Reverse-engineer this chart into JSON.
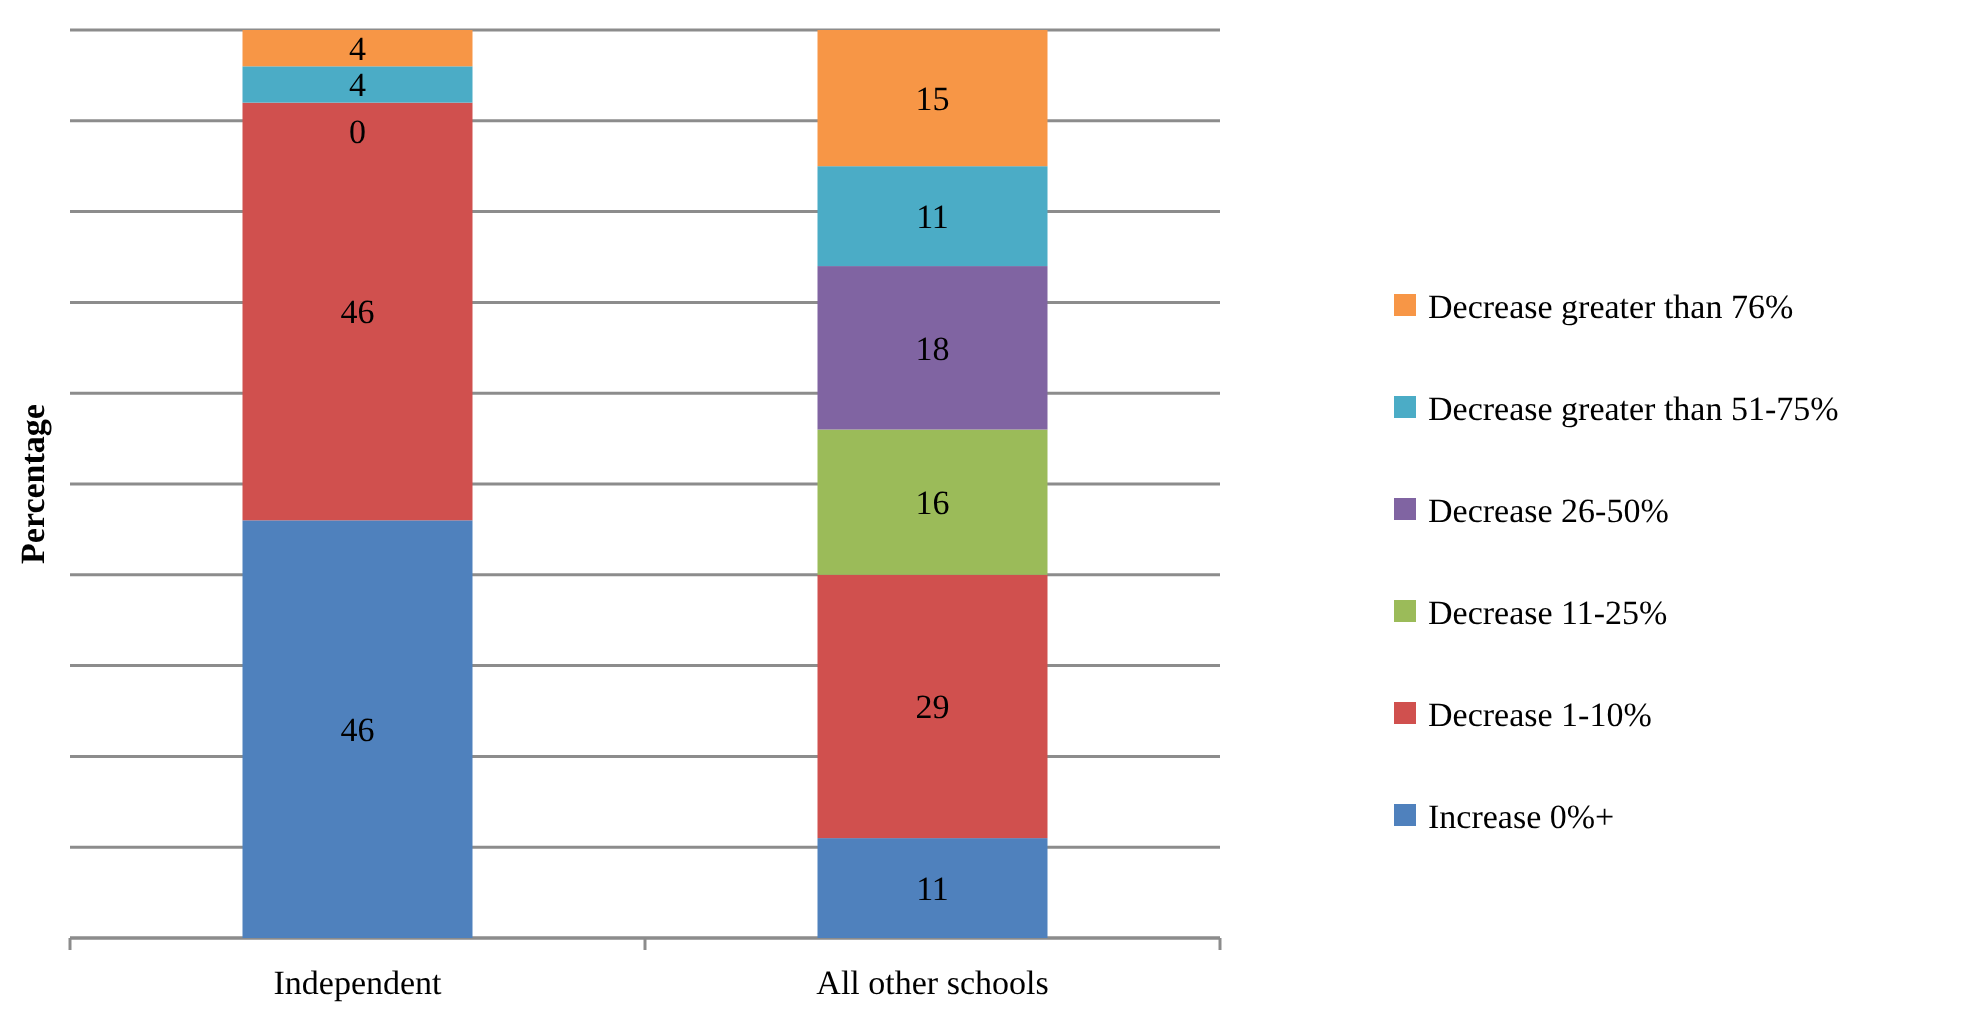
{
  "chart_data": {
    "type": "bar",
    "stacked": true,
    "ylabel": "Percentage",
    "categories": [
      "Independent",
      "All other schools"
    ],
    "series": [
      {
        "name": "Increase 0%+",
        "color": "#4f81bd",
        "values": [
          46,
          11
        ]
      },
      {
        "name": "Decrease 1-10%",
        "color": "#d0504e",
        "values": [
          46,
          29
        ]
      },
      {
        "name": "Decrease 11-25%",
        "color": "#9bbb59",
        "values": [
          0,
          16
        ],
        "value_labels": [
          null,
          "16"
        ]
      },
      {
        "name": "Decrease 26-50%",
        "color": "#8064a2",
        "values": [
          0,
          18
        ]
      },
      {
        "name": "Decrease greater than 51-75%",
        "color": "#4bacc6",
        "values": [
          4,
          11
        ]
      },
      {
        "name": "Decrease greater than 76%",
        "color": "#f79646",
        "values": [
          4,
          15
        ]
      }
    ],
    "ylim": [
      0,
      100
    ],
    "yticks": [
      {
        "value": 0,
        "label": null
      },
      {
        "value": 10,
        "label": null
      },
      {
        "value": 20,
        "label": null
      },
      {
        "value": 30,
        "label": null
      },
      {
        "value": 40,
        "label": null
      },
      {
        "value": 50,
        "label": null
      },
      {
        "value": 60,
        "label": null
      },
      {
        "value": 70,
        "label": null
      },
      {
        "value": 80,
        "label": null
      },
      {
        "value": 90,
        "label": null
      },
      {
        "value": 100,
        "label": null
      }
    ],
    "tick_labels": "x",
    "grid": "y",
    "data_labels": true,
    "legend": "right"
  }
}
